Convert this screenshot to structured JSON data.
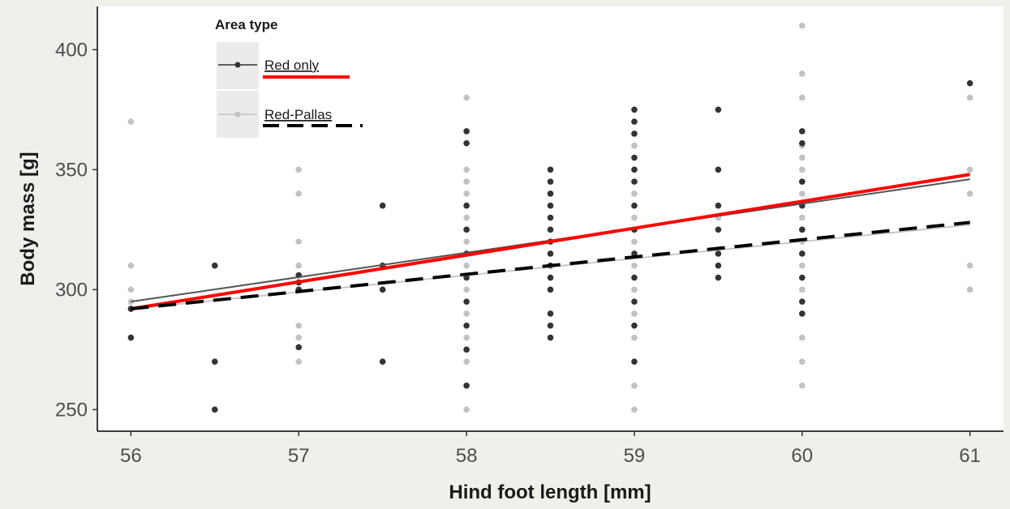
{
  "chart_data": {
    "type": "scatter",
    "xlabel": "Hind foot length [mm]",
    "ylabel": "Body mass [g]",
    "xlim": [
      55.8,
      61.2
    ],
    "ylim": [
      241,
      418
    ],
    "x_ticks": [
      56,
      57,
      58,
      59,
      60,
      61
    ],
    "y_ticks": [
      250,
      300,
      350,
      400
    ],
    "grid": false,
    "legend": {
      "title": "Area type",
      "placement": "top-left",
      "entries": [
        "Red only",
        "Red-Pallas"
      ]
    },
    "series": [
      {
        "name": "Red only",
        "color": "#333333",
        "points": [
          [
            56,
            292
          ],
          [
            56,
            280
          ],
          [
            56.5,
            310
          ],
          [
            56.5,
            270
          ],
          [
            56.5,
            250
          ],
          [
            57,
            306
          ],
          [
            57,
            303
          ],
          [
            57,
            300
          ],
          [
            57,
            276
          ],
          [
            57.5,
            335
          ],
          [
            57.5,
            310
          ],
          [
            57.5,
            300
          ],
          [
            57.5,
            270
          ],
          [
            58,
            366
          ],
          [
            58,
            361
          ],
          [
            58,
            335
          ],
          [
            58,
            325
          ],
          [
            58,
            315
          ],
          [
            58,
            305
          ],
          [
            58,
            295
          ],
          [
            58,
            285
          ],
          [
            58,
            275
          ],
          [
            58,
            260
          ],
          [
            58.5,
            350
          ],
          [
            58.5,
            345
          ],
          [
            58.5,
            340
          ],
          [
            58.5,
            335
          ],
          [
            58.5,
            330
          ],
          [
            58.5,
            325
          ],
          [
            58.5,
            320
          ],
          [
            58.5,
            315
          ],
          [
            58.5,
            310
          ],
          [
            58.5,
            305
          ],
          [
            58.5,
            300
          ],
          [
            58.5,
            290
          ],
          [
            58.5,
            285
          ],
          [
            58.5,
            280
          ],
          [
            59,
            375
          ],
          [
            59,
            370
          ],
          [
            59,
            365
          ],
          [
            59,
            355
          ],
          [
            59,
            350
          ],
          [
            59,
            345
          ],
          [
            59,
            335
          ],
          [
            59,
            325
          ],
          [
            59,
            315
          ],
          [
            59,
            305
          ],
          [
            59,
            295
          ],
          [
            59,
            285
          ],
          [
            59,
            270
          ],
          [
            59.5,
            375
          ],
          [
            59.5,
            350
          ],
          [
            59.5,
            335
          ],
          [
            59.5,
            325
          ],
          [
            59.5,
            315
          ],
          [
            59.5,
            310
          ],
          [
            59.5,
            305
          ],
          [
            60,
            366
          ],
          [
            60,
            361
          ],
          [
            60,
            345
          ],
          [
            60,
            335
          ],
          [
            60,
            325
          ],
          [
            60,
            315
          ],
          [
            60,
            305
          ],
          [
            60,
            295
          ],
          [
            60,
            290
          ],
          [
            61,
            386
          ]
        ],
        "fit": [
          [
            56,
            295
          ],
          [
            61,
            346
          ]
        ]
      },
      {
        "name": "Red-Pallas",
        "color": "#c2c2c2",
        "points": [
          [
            56,
            370
          ],
          [
            56,
            310
          ],
          [
            56,
            300
          ],
          [
            56,
            295
          ],
          [
            57,
            350
          ],
          [
            57,
            340
          ],
          [
            57,
            320
          ],
          [
            57,
            310
          ],
          [
            57,
            285
          ],
          [
            57,
            280
          ],
          [
            57,
            270
          ],
          [
            58,
            380
          ],
          [
            58,
            350
          ],
          [
            58,
            345
          ],
          [
            58,
            340
          ],
          [
            58,
            330
          ],
          [
            58,
            320
          ],
          [
            58,
            310
          ],
          [
            58,
            300
          ],
          [
            58,
            290
          ],
          [
            58,
            280
          ],
          [
            58,
            270
          ],
          [
            58,
            250
          ],
          [
            58.5,
            340
          ],
          [
            58.5,
            325
          ],
          [
            59,
            360
          ],
          [
            59,
            340
          ],
          [
            59,
            330
          ],
          [
            59,
            320
          ],
          [
            59,
            310
          ],
          [
            59,
            300
          ],
          [
            59,
            290
          ],
          [
            59,
            280
          ],
          [
            59,
            260
          ],
          [
            59,
            250
          ],
          [
            59.5,
            330
          ],
          [
            60,
            410
          ],
          [
            60,
            390
          ],
          [
            60,
            380
          ],
          [
            60,
            360
          ],
          [
            60,
            355
          ],
          [
            60,
            350
          ],
          [
            60,
            345
          ],
          [
            60,
            340
          ],
          [
            60,
            330
          ],
          [
            60,
            320
          ],
          [
            60,
            310
          ],
          [
            60,
            300
          ],
          [
            60,
            280
          ],
          [
            60,
            270
          ],
          [
            60,
            260
          ],
          [
            61,
            380
          ],
          [
            61,
            350
          ],
          [
            61,
            340
          ],
          [
            61,
            310
          ],
          [
            61,
            300
          ]
        ],
        "fit": [
          [
            56,
            292
          ],
          [
            61,
            327
          ]
        ]
      }
    ],
    "overlay_lines": [
      {
        "color": "#ff0000",
        "style": "solid",
        "points": [
          [
            56,
            292
          ],
          [
            61,
            348
          ]
        ]
      },
      {
        "color": "#000000",
        "style": "dashed",
        "points": [
          [
            56,
            292
          ],
          [
            61,
            328
          ]
        ]
      }
    ]
  }
}
